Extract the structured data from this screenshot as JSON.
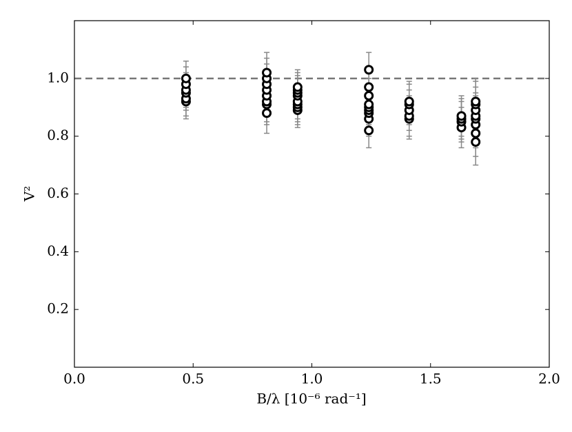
{
  "chart_data": {
    "type": "scatter",
    "xlabel": "B/λ [10⁻⁶ rad⁻¹]",
    "ylabel": "V²",
    "xlim": [
      0,
      2.0
    ],
    "ylim": [
      0,
      1.2
    ],
    "xticks": [
      {
        "value": 0,
        "label": "0.0"
      },
      0.5,
      {
        "value": 1,
        "label": "1.0"
      },
      1.5,
      {
        "value": 2,
        "label": "2.0"
      }
    ],
    "yticks": [
      0.2,
      0.4,
      0.6,
      0.8,
      {
        "value": 1,
        "label": "1.0"
      }
    ],
    "hline": 1.0,
    "hline_color": "#777777",
    "error_color": "#888888",
    "series": [
      {
        "color": "#000000",
        "x": [
          0.47,
          0.47,
          0.47,
          0.47,
          0.47,
          0.47,
          0.81,
          0.81,
          0.81,
          0.81,
          0.81,
          0.81,
          0.81,
          0.81,
          0.94,
          0.94,
          0.94,
          0.94,
          0.94,
          0.94,
          0.94,
          0.94,
          1.24,
          1.24,
          1.24,
          1.24,
          1.24,
          1.24,
          1.24,
          1.24,
          1.24,
          1.41,
          1.41,
          1.41,
          1.41,
          1.41,
          1.63,
          1.63,
          1.63,
          1.63,
          1.69,
          1.69,
          1.69,
          1.69,
          1.69,
          1.69,
          1.69,
          1.69
        ],
        "values": [
          0.92,
          0.93,
          0.95,
          0.96,
          0.98,
          1.0,
          0.88,
          0.91,
          0.92,
          0.94,
          0.96,
          0.98,
          1.0,
          1.02,
          0.89,
          0.9,
          0.91,
          0.92,
          0.94,
          0.95,
          0.96,
          0.97,
          0.82,
          0.86,
          0.88,
          0.89,
          0.9,
          0.91,
          0.94,
          0.97,
          1.03,
          0.86,
          0.87,
          0.89,
          0.91,
          0.92,
          0.83,
          0.85,
          0.86,
          0.87,
          0.78,
          0.81,
          0.84,
          0.86,
          0.87,
          0.89,
          0.91,
          0.92
        ],
        "errors": [
          0.06,
          0.06,
          0.06,
          0.06,
          0.06,
          0.06,
          0.07,
          0.07,
          0.07,
          0.07,
          0.07,
          0.07,
          0.07,
          0.07,
          0.06,
          0.06,
          0.06,
          0.06,
          0.06,
          0.06,
          0.06,
          0.06,
          0.06,
          0.06,
          0.06,
          0.06,
          0.06,
          0.06,
          0.06,
          0.06,
          0.06,
          0.07,
          0.07,
          0.07,
          0.07,
          0.07,
          0.07,
          0.07,
          0.07,
          0.07,
          0.08,
          0.08,
          0.08,
          0.08,
          0.08,
          0.08,
          0.08,
          0.08
        ]
      }
    ]
  }
}
